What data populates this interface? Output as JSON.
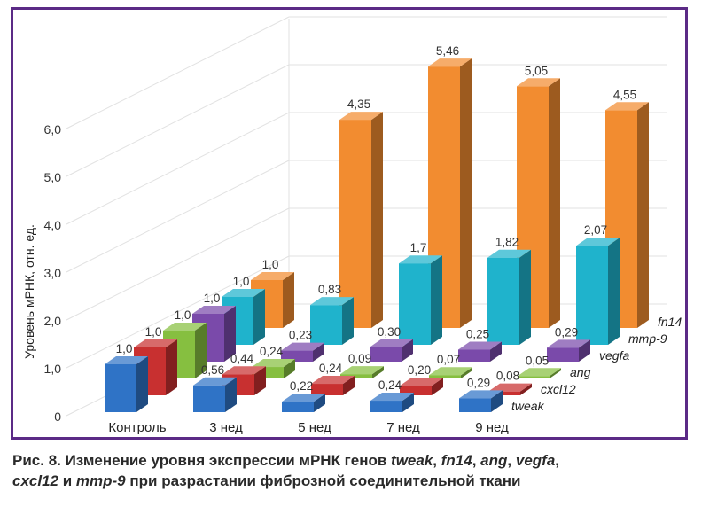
{
  "chart_data": {
    "type": "bar",
    "categories": [
      "Контроль",
      "3 нед",
      "5 нед",
      "7 нед",
      "9 нед"
    ],
    "yticks": [
      "0",
      "1,0",
      "2,0",
      "3,0",
      "4,0",
      "5,0",
      "6,0"
    ],
    "ylabel": "Уровень мРНК, отн. ед.",
    "ylim": [
      0,
      6
    ],
    "series": [
      {
        "name": "tweak",
        "color": "#2f73c6",
        "values": [
          1.0,
          0.56,
          0.22,
          0.24,
          0.29
        ],
        "labels": [
          "1,0",
          "0,56",
          "0,22",
          "0,24",
          "0,29"
        ]
      },
      {
        "name": "cxcl12",
        "color": "#c83030",
        "values": [
          1.0,
          0.44,
          0.24,
          0.2,
          0.08
        ],
        "labels": [
          "1,0",
          "0,44",
          "0,24",
          "0,20",
          "0,08"
        ]
      },
      {
        "name": "ang",
        "color": "#86bf40",
        "values": [
          1.0,
          0.24,
          0.09,
          0.07,
          0.05
        ],
        "labels": [
          "1,0",
          "0,24",
          "0,09",
          "0,07",
          "0,05"
        ]
      },
      {
        "name": "vegfa",
        "color": "#7a4aaa",
        "values": [
          1.0,
          0.23,
          0.3,
          0.25,
          0.29
        ],
        "labels": [
          "1,0",
          "0,23",
          "0,30",
          "0,25",
          "0,29"
        ]
      },
      {
        "name": "mmp-9",
        "color": "#1fb3cc",
        "values": [
          1.0,
          0.83,
          1.7,
          1.82,
          2.07
        ],
        "labels": [
          "1,0",
          "0,83",
          "1,7",
          "1,82",
          "2,07"
        ]
      },
      {
        "name": "fn14",
        "color": "#f28c30",
        "values": [
          1.0,
          4.35,
          5.46,
          5.05,
          4.55
        ],
        "labels": [
          "1,0",
          "4,35",
          "5,46",
          "5,05",
          "4,55"
        ]
      }
    ],
    "grid": true,
    "legend": "series names at right end of each row"
  },
  "caption": {
    "prefix": "Рис. 8. Изменение уровня экспрессии мРНК генов ",
    "g1": "tweak",
    "s1": ", ",
    "g2": "fn14",
    "s2": ", ",
    "g3": "ang",
    "s3": ", ",
    "g4": "vegfa",
    "s4": ",",
    "g5": "cxcl12",
    "s5": " и ",
    "g6": "mmp-9",
    "suffix": " при разрастании фиброзной соединительной ткани"
  }
}
